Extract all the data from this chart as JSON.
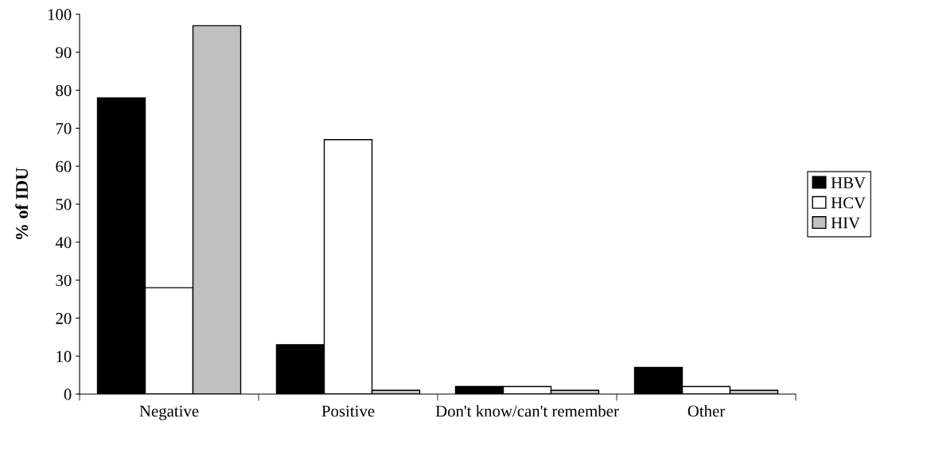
{
  "chart_data": {
    "type": "bar",
    "ylabel": "% of IDU",
    "categories": [
      "Negative",
      "Positive",
      "Don't know/can't remember",
      "Other"
    ],
    "series": [
      {
        "name": "HBV",
        "color": "#000000",
        "values": [
          78,
          13,
          2,
          7
        ]
      },
      {
        "name": "HCV",
        "color": "#ffffff",
        "values": [
          28,
          67,
          2,
          2
        ]
      },
      {
        "name": "HIV",
        "color": "#c0c0c0",
        "values": [
          97,
          1,
          1,
          1
        ]
      }
    ],
    "ylim": [
      0,
      100
    ],
    "yticks": [
      0,
      10,
      20,
      30,
      40,
      50,
      60,
      70,
      80,
      90,
      100
    ],
    "grid": false,
    "legend": "right"
  }
}
